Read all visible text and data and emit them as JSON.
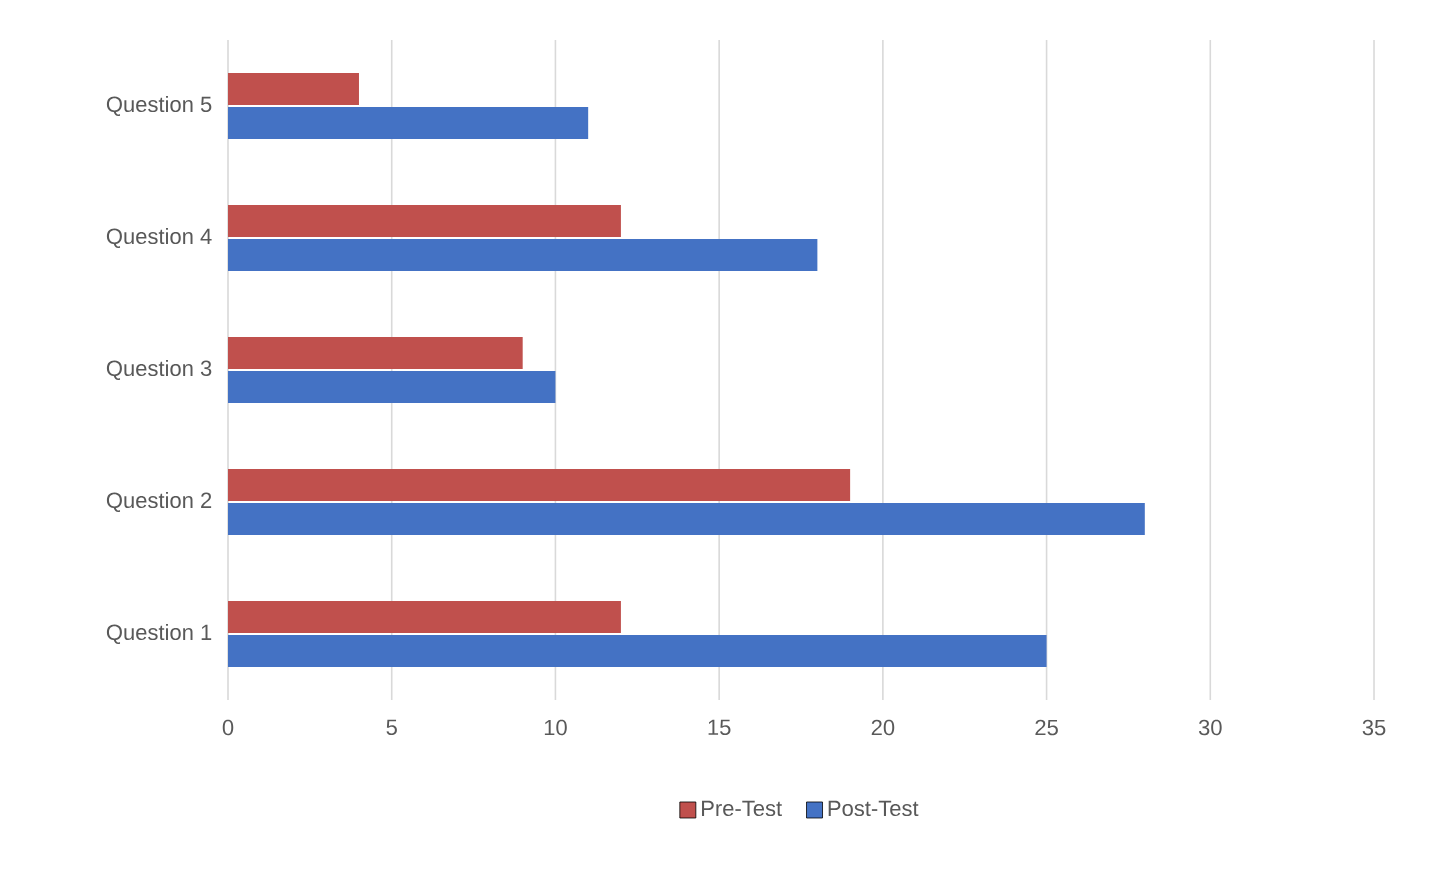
{
  "chart_data": {
    "type": "bar",
    "orientation": "horizontal",
    "categories": [
      "Question 5",
      "Question 4",
      "Question 3",
      "Question 2",
      "Question 1"
    ],
    "series": [
      {
        "name": "Pre-Test",
        "color": "#c0504d",
        "values": [
          4,
          12,
          9,
          19,
          12
        ]
      },
      {
        "name": "Post-Test",
        "color": "#4472c4",
        "values": [
          11,
          18,
          10,
          28,
          25
        ]
      }
    ],
    "xlim": [
      0,
      35
    ],
    "xticks": [
      0,
      5,
      10,
      15,
      20,
      25,
      30,
      35
    ],
    "grid": "x",
    "legend": "bottom"
  }
}
